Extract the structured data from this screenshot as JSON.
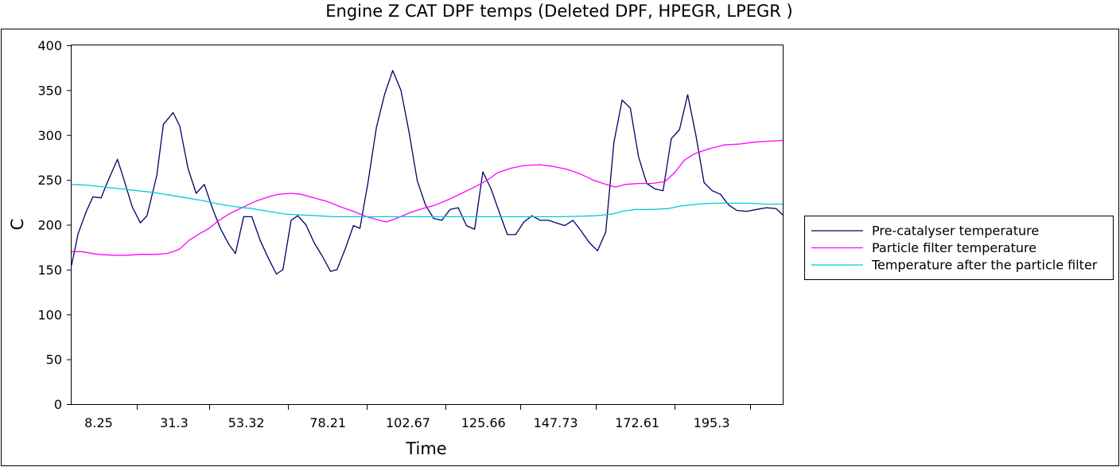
{
  "chart_data": {
    "type": "line",
    "title": "Engine Z CAT DPF temps (Deleted DPF, HPEGR, LPEGR )",
    "xlabel": "Time",
    "ylabel": "C",
    "xlim": [
      0,
      217
    ],
    "ylim": [
      0,
      400
    ],
    "y_ticks": [
      0,
      50,
      100,
      150,
      200,
      250,
      300,
      350,
      400
    ],
    "x_tick_labels": [
      {
        "value": 8.25,
        "label": "8.25"
      },
      {
        "value": 31.3,
        "label": "31.3"
      },
      {
        "value": 53.32,
        "label": "53.32"
      },
      {
        "value": 78.21,
        "label": "78.21"
      },
      {
        "value": 102.67,
        "label": "102.67"
      },
      {
        "value": 125.66,
        "label": "125.66"
      },
      {
        "value": 147.73,
        "label": "147.73"
      },
      {
        "value": 172.61,
        "label": "172.61"
      },
      {
        "value": 195.3,
        "label": "195.3"
      }
    ],
    "x_minor_ticks": [
      20,
      42,
      66,
      90,
      114,
      137,
      160,
      184,
      207
    ],
    "grid": false,
    "legend_position": "right",
    "series": [
      {
        "name": "Pre-catalyser temperature",
        "color": "#000066",
        "points": [
          [
            0,
            155
          ],
          [
            2,
            190
          ],
          [
            4.5,
            215
          ],
          [
            6.5,
            231
          ],
          [
            9,
            230
          ],
          [
            11,
            248
          ],
          [
            14,
            273
          ],
          [
            16,
            250
          ],
          [
            18.5,
            220
          ],
          [
            21,
            202
          ],
          [
            23,
            210
          ],
          [
            26,
            255
          ],
          [
            28,
            312
          ],
          [
            31,
            325
          ],
          [
            33,
            310
          ],
          [
            35.5,
            263
          ],
          [
            38,
            235
          ],
          [
            40.5,
            245
          ],
          [
            43,
            218
          ],
          [
            45.5,
            195
          ],
          [
            48,
            178
          ],
          [
            50,
            168
          ],
          [
            52.5,
            209
          ],
          [
            55,
            209
          ],
          [
            57.5,
            183
          ],
          [
            60,
            163
          ],
          [
            62.5,
            145
          ],
          [
            64.5,
            150
          ],
          [
            67,
            205
          ],
          [
            69,
            210
          ],
          [
            71.5,
            200
          ],
          [
            74,
            180
          ],
          [
            76.5,
            165
          ],
          [
            79,
            148
          ],
          [
            81,
            150
          ],
          [
            83.5,
            173
          ],
          [
            86,
            199
          ],
          [
            88,
            196
          ],
          [
            90.5,
            248
          ],
          [
            93,
            308
          ],
          [
            95.5,
            345
          ],
          [
            98,
            372
          ],
          [
            100.5,
            350
          ],
          [
            103,
            303
          ],
          [
            105.5,
            249
          ],
          [
            108,
            222
          ],
          [
            110.5,
            207
          ],
          [
            113,
            205
          ],
          [
            115.5,
            217
          ],
          [
            118,
            219
          ],
          [
            120.5,
            199
          ],
          [
            123,
            195
          ],
          [
            125.5,
            259
          ],
          [
            128,
            240
          ],
          [
            130.5,
            214
          ],
          [
            133,
            189
          ],
          [
            135.5,
            189
          ],
          [
            138,
            203
          ],
          [
            140.5,
            210
          ],
          [
            143,
            205
          ],
          [
            145.5,
            205
          ],
          [
            148,
            202
          ],
          [
            150.5,
            199
          ],
          [
            153,
            205
          ],
          [
            155.5,
            193
          ],
          [
            158,
            180
          ],
          [
            160.5,
            171
          ],
          [
            163,
            192
          ],
          [
            165.5,
            292
          ],
          [
            168,
            339
          ],
          [
            170.5,
            330
          ],
          [
            173,
            276
          ],
          [
            175.5,
            246
          ],
          [
            178,
            240
          ],
          [
            180.5,
            238
          ],
          [
            183,
            296
          ],
          [
            185.5,
            306
          ],
          [
            188,
            345
          ],
          [
            190.5,
            300
          ],
          [
            193,
            247
          ],
          [
            195.5,
            238
          ],
          [
            198,
            234
          ],
          [
            200.5,
            222
          ],
          [
            203,
            216
          ],
          [
            206,
            215
          ],
          [
            209,
            217
          ],
          [
            212,
            219
          ],
          [
            215,
            218
          ],
          [
            217,
            211
          ]
        ]
      },
      {
        "name": "Particle filter temperature",
        "color": "#ff00ff",
        "points": [
          [
            0,
            170
          ],
          [
            3,
            170
          ],
          [
            8,
            167
          ],
          [
            13,
            166
          ],
          [
            17,
            166
          ],
          [
            21,
            167
          ],
          [
            26,
            167
          ],
          [
            29,
            168
          ],
          [
            31,
            170
          ],
          [
            33,
            173
          ],
          [
            36,
            183
          ],
          [
            39,
            190
          ],
          [
            42,
            196
          ],
          [
            45,
            205
          ],
          [
            48,
            212
          ],
          [
            52,
            219
          ],
          [
            56,
            226
          ],
          [
            60,
            231
          ],
          [
            63,
            234
          ],
          [
            67,
            235
          ],
          [
            70,
            234
          ],
          [
            74,
            230
          ],
          [
            78,
            226
          ],
          [
            82,
            220
          ],
          [
            86,
            215
          ],
          [
            90,
            209
          ],
          [
            94,
            205
          ],
          [
            96,
            203
          ],
          [
            99,
            207
          ],
          [
            103,
            213
          ],
          [
            107,
            218
          ],
          [
            111,
            222
          ],
          [
            115,
            228
          ],
          [
            119,
            235
          ],
          [
            123,
            242
          ],
          [
            127,
            250
          ],
          [
            130,
            258
          ],
          [
            134,
            263
          ],
          [
            138,
            266
          ],
          [
            143,
            267
          ],
          [
            147,
            265
          ],
          [
            151,
            262
          ],
          [
            155,
            257
          ],
          [
            159,
            250
          ],
          [
            163,
            245
          ],
          [
            166,
            242
          ],
          [
            169,
            245
          ],
          [
            173,
            246
          ],
          [
            177,
            246
          ],
          [
            181,
            248
          ],
          [
            184,
            258
          ],
          [
            187,
            272
          ],
          [
            190,
            279
          ],
          [
            194,
            284
          ],
          [
            199,
            289
          ],
          [
            204,
            290
          ],
          [
            208,
            292
          ],
          [
            212,
            293
          ],
          [
            217,
            294
          ]
        ]
      },
      {
        "name": "Temperature after the particle filter",
        "color": "#00ccdd",
        "points": [
          [
            0,
            245
          ],
          [
            5,
            244
          ],
          [
            10,
            242
          ],
          [
            15,
            240
          ],
          [
            20,
            238
          ],
          [
            25,
            236
          ],
          [
            30,
            233
          ],
          [
            35,
            230
          ],
          [
            40,
            227
          ],
          [
            45,
            223
          ],
          [
            50,
            220
          ],
          [
            55,
            218
          ],
          [
            60,
            215
          ],
          [
            65,
            212
          ],
          [
            70,
            211
          ],
          [
            75,
            210
          ],
          [
            80,
            209
          ],
          [
            90,
            209
          ],
          [
            100,
            209
          ],
          [
            110,
            209
          ],
          [
            120,
            209
          ],
          [
            130,
            209
          ],
          [
            140,
            209
          ],
          [
            150,
            209
          ],
          [
            160,
            210
          ],
          [
            165,
            212
          ],
          [
            168,
            215
          ],
          [
            172,
            217
          ],
          [
            177,
            217
          ],
          [
            182,
            218
          ],
          [
            186,
            221
          ],
          [
            191,
            223
          ],
          [
            196,
            224
          ],
          [
            202,
            224
          ],
          [
            207,
            224
          ],
          [
            212,
            223
          ],
          [
            217,
            223
          ]
        ]
      }
    ]
  }
}
